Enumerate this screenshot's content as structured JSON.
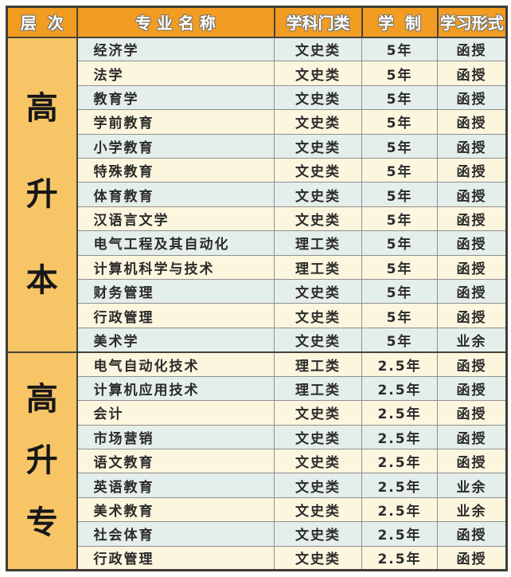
{
  "colors": {
    "header_bg": "#f29c21",
    "level_bg": "#f7c566",
    "stripe_blue": "#e4eeea",
    "stripe_cream": "#fcf6df",
    "border_dark": "#46423a",
    "grid_gray": "#8f9090",
    "text": "#2b2b2b"
  },
  "table": {
    "headers": [
      {
        "id": "level",
        "label": "层  次"
      },
      {
        "id": "major",
        "label": "专 业 名 称"
      },
      {
        "id": "category",
        "label": "学科门类"
      },
      {
        "id": "duration",
        "label": "学  制"
      },
      {
        "id": "format",
        "label": "学习形式"
      }
    ],
    "sections": [
      {
        "level": "高升本",
        "rows": [
          {
            "major": "经济学",
            "category": "文史类",
            "duration": "5年",
            "format": "函授"
          },
          {
            "major": "法学",
            "category": "文史类",
            "duration": "5年",
            "format": "函授"
          },
          {
            "major": "教育学",
            "category": "文史类",
            "duration": "5年",
            "format": "函授"
          },
          {
            "major": "学前教育",
            "category": "文史类",
            "duration": "5年",
            "format": "函授"
          },
          {
            "major": "小学教育",
            "category": "文史类",
            "duration": "5年",
            "format": "函授"
          },
          {
            "major": "特殊教育",
            "category": "文史类",
            "duration": "5年",
            "format": "函授"
          },
          {
            "major": "体育教育",
            "category": "文史类",
            "duration": "5年",
            "format": "函授"
          },
          {
            "major": "汉语言文学",
            "category": "文史类",
            "duration": "5年",
            "format": "函授"
          },
          {
            "major": "电气工程及其自动化",
            "category": "理工类",
            "duration": "5年",
            "format": "函授"
          },
          {
            "major": "计算机科学与技术",
            "category": "理工类",
            "duration": "5年",
            "format": "函授"
          },
          {
            "major": "财务管理",
            "category": "文史类",
            "duration": "5年",
            "format": "函授"
          },
          {
            "major": "行政管理",
            "category": "文史类",
            "duration": "5年",
            "format": "函授"
          },
          {
            "major": "美术学",
            "category": "文史类",
            "duration": "5年",
            "format": "业余"
          }
        ]
      },
      {
        "level": "高升专",
        "rows": [
          {
            "major": "电气自动化技术",
            "category": "理工类",
            "duration": "2.5年",
            "format": "函授"
          },
          {
            "major": "计算机应用技术",
            "category": "理工类",
            "duration": "2.5年",
            "format": "函授"
          },
          {
            "major": "会计",
            "category": "文史类",
            "duration": "2.5年",
            "format": "函授"
          },
          {
            "major": "市场营销",
            "category": "文史类",
            "duration": "2.5年",
            "format": "函授"
          },
          {
            "major": "语文教育",
            "category": "文史类",
            "duration": "2.5年",
            "format": "函授"
          },
          {
            "major": "英语教育",
            "category": "文史类",
            "duration": "2.5年",
            "format": "业余"
          },
          {
            "major": "美术教育",
            "category": "文史类",
            "duration": "2.5年",
            "format": "业余"
          },
          {
            "major": "社会体育",
            "category": "文史类",
            "duration": "2.5年",
            "format": "函授"
          },
          {
            "major": "行政管理",
            "category": "文史类",
            "duration": "2.5年",
            "format": "函授"
          }
        ]
      }
    ]
  }
}
